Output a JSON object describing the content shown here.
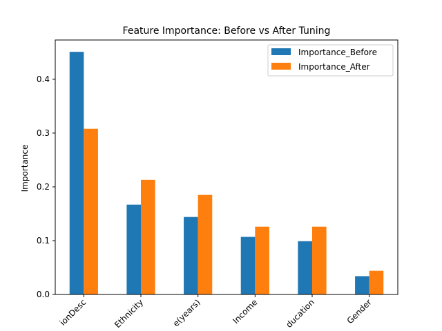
{
  "chart_data": {
    "type": "bar",
    "title": "Feature Importance: Before vs After Tuning",
    "xlabel": "",
    "ylabel": "Importance",
    "categories": [
      "...ionDesc",
      "Ethnicity",
      "...e(years)",
      "Income",
      "...ducation",
      "Gender"
    ],
    "series": [
      {
        "name": "Importance_Before",
        "color": "#1f77b4",
        "values": [
          0.451,
          0.167,
          0.144,
          0.107,
          0.099,
          0.034
        ]
      },
      {
        "name": "Importance_After",
        "color": "#ff7f0e",
        "values": [
          0.308,
          0.213,
          0.185,
          0.126,
          0.126,
          0.044
        ]
      }
    ],
    "ylim": [
      0,
      0.473
    ],
    "yticks": [
      0.0,
      0.1,
      0.2,
      0.3,
      0.4
    ],
    "ytick_labels": [
      "0.0",
      "0.1",
      "0.2",
      "0.3",
      "0.4"
    ],
    "grid": false,
    "legend": "top-right"
  }
}
